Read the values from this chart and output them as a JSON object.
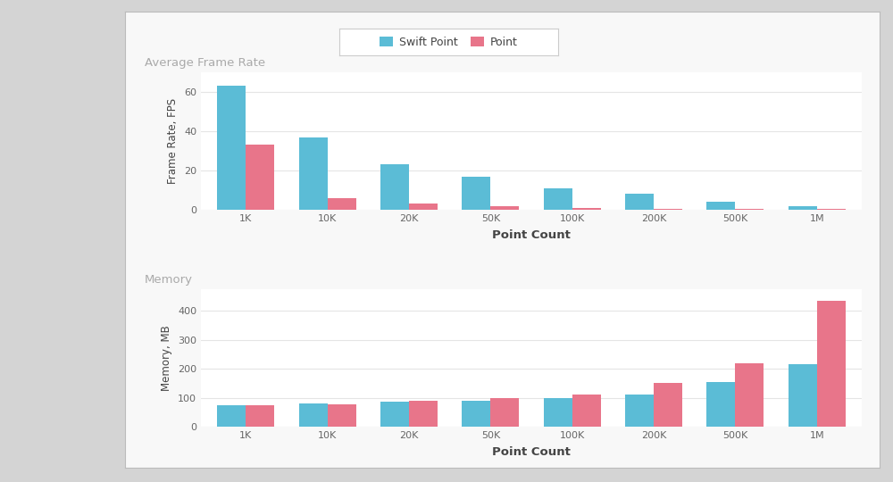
{
  "categories": [
    "1K",
    "10K",
    "20K",
    "50K",
    "100K",
    "200K",
    "500K",
    "1M"
  ],
  "fps_swift": [
    63,
    37,
    23,
    17,
    11,
    8,
    4,
    2
  ],
  "fps_point": [
    33,
    6,
    3,
    2,
    1,
    0.5,
    0.5,
    0.3
  ],
  "mem_swift": [
    75,
    80,
    85,
    88,
    98,
    112,
    155,
    215
  ],
  "mem_point": [
    75,
    78,
    90,
    100,
    112,
    150,
    220,
    435
  ],
  "color_swift": "#5bbcd6",
  "color_point": "#e8758a",
  "title_fps": "Average Frame Rate",
  "title_mem": "Memory",
  "ylabel_fps": "Frame Rate, FPS",
  "ylabel_mem": "Memory, MB",
  "xlabel": "Point Count",
  "legend_swift": "Swift Point",
  "legend_point": "Point",
  "outer_bg": "#d4d4d4",
  "inner_bg": "#f8f8f8",
  "chart_bg": "#ffffff",
  "title_color": "#aaaaaa",
  "axis_label_color": "#444444",
  "tick_color": "#666666",
  "grid_color": "#e5e5e5",
  "legend_border_color": "#cccccc",
  "ylim_fps": [
    0,
    70
  ],
  "ylim_mem": [
    0,
    475
  ],
  "yticks_fps": [
    0,
    20,
    40,
    60
  ],
  "yticks_mem": [
    0,
    100,
    200,
    300,
    400
  ]
}
